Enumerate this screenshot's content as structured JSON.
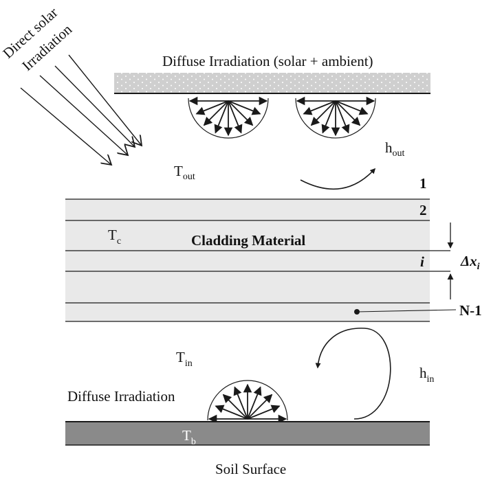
{
  "labels": {
    "direct_solar_line1": "Direct solar",
    "direct_solar_line2": "Irradiation",
    "diffuse_top": "Diffuse Irradiation (solar + ambient)",
    "t_out_main": "T",
    "t_out_sub": "out",
    "h_out_main": "h",
    "h_out_sub": "out",
    "layer_1": "1",
    "layer_2": "2",
    "t_c_main": "T",
    "t_c_sub": "c",
    "cladding": "Cladding Material",
    "layer_i": "i",
    "delta_x_main": "Δx",
    "delta_x_sub": "i",
    "layer_n1": "N-1",
    "t_in_main": "T",
    "t_in_sub": "in",
    "h_in_main": "h",
    "h_in_sub": "in",
    "diffuse_bottom": "Diffuse Irradiation",
    "t_b_main": "T",
    "t_b_sub": "b",
    "soil": "Soil Surface"
  },
  "colors": {
    "cladding_fill": "#e9e9e9",
    "top_band_fill": "#cfcfcf",
    "soil_band_fill": "#8a8a8a",
    "line": "#1a1a1a"
  }
}
